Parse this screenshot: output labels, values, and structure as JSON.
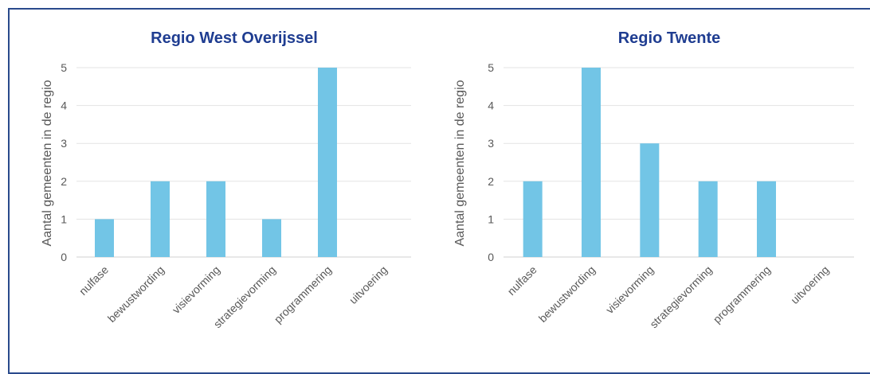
{
  "bar_color": "#72c5e6",
  "chart_data": [
    {
      "type": "bar",
      "title": "Regio West Overijssel",
      "ylabel": "Aantal gemeenten in de regio",
      "xlabel": "",
      "ylim": [
        0,
        5
      ],
      "yticks": [
        "0",
        "1",
        "2",
        "3",
        "4",
        "5"
      ],
      "categories": [
        "nulfase",
        "bewustwording",
        "visievorming",
        "strategievorming",
        "programmering",
        "uitvoering"
      ],
      "values": [
        1,
        2,
        2,
        1,
        5,
        0
      ],
      "grid": true,
      "legend": "none"
    },
    {
      "type": "bar",
      "title": "Regio Twente",
      "ylabel": "Aantal gemeenten in de regio",
      "xlabel": "",
      "ylim": [
        0,
        5
      ],
      "yticks": [
        "0",
        "1",
        "2",
        "3",
        "4",
        "5"
      ],
      "categories": [
        "nulfase",
        "bewustwording",
        "visievorming",
        "strategievorming",
        "programmering",
        "uitvoering"
      ],
      "values": [
        2,
        5,
        3,
        2,
        2,
        0
      ],
      "grid": true,
      "legend": "none"
    }
  ]
}
